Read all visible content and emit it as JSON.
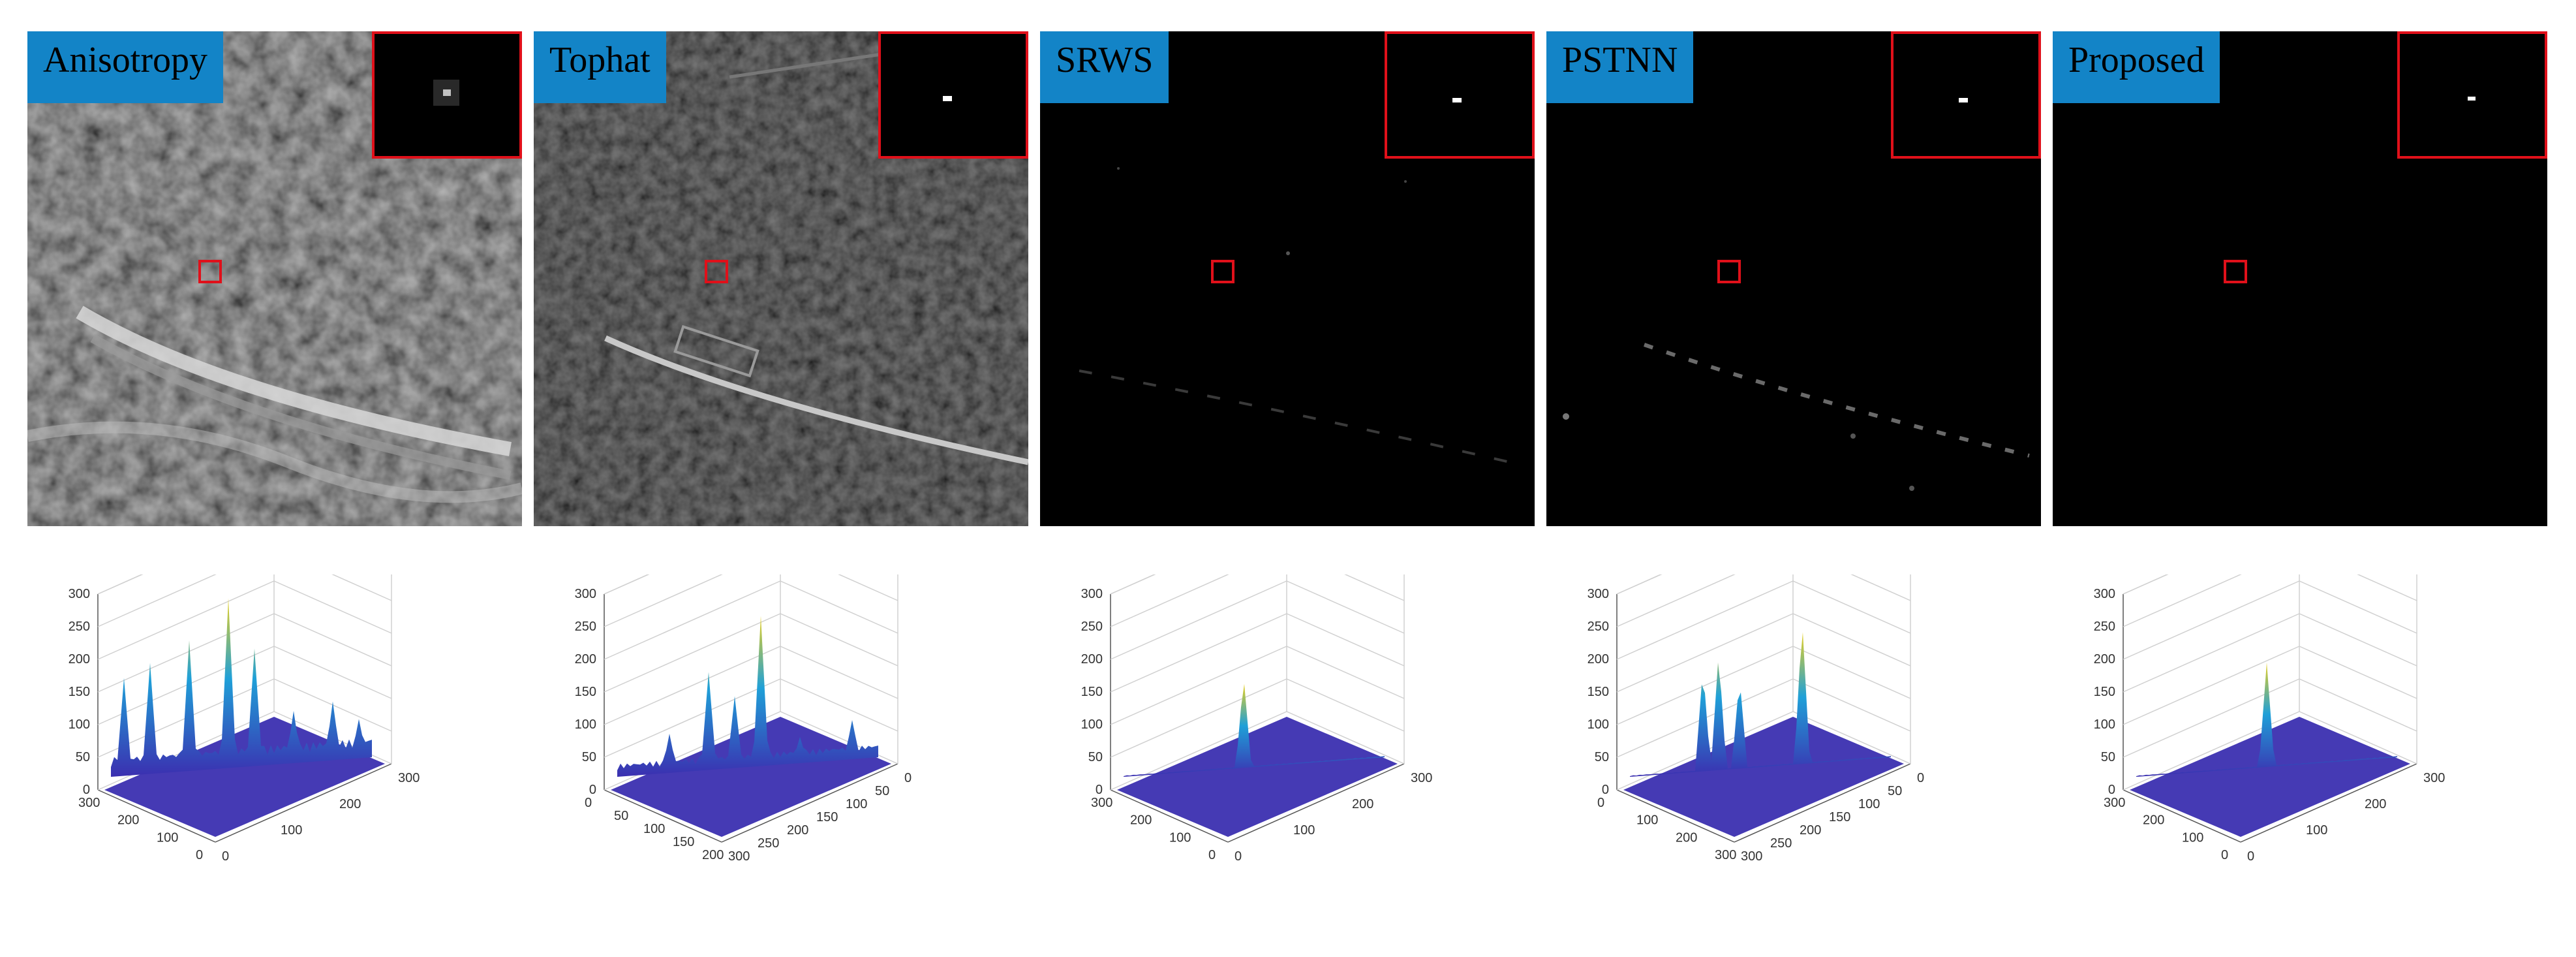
{
  "panels": [
    {
      "label": "Anisotropy"
    },
    {
      "label": "Tophat"
    },
    {
      "label": "SRWS"
    },
    {
      "label": "PSTNN"
    },
    {
      "label": "Proposed"
    }
  ],
  "colors": {
    "label_bg": "#1384c7",
    "box": "#e0101a",
    "surface_low": "#3b2fb0",
    "surface_mid": "#1fa0d8",
    "surface_high": "#e8d020"
  },
  "plots": [
    {
      "z_ticks": [
        "300",
        "250",
        "200",
        "150",
        "100",
        "50",
        "0"
      ],
      "x_ticks": [
        "0",
        "100",
        "200",
        "300"
      ],
      "y_ticks": [
        "300",
        "200",
        "100",
        "0"
      ]
    },
    {
      "z_ticks": [
        "300",
        "250",
        "200",
        "150",
        "100",
        "50",
        "0"
      ],
      "x_ticks": [
        "300",
        "250",
        "200",
        "150",
        "100",
        "50",
        "0"
      ],
      "y_ticks": [
        "0",
        "50",
        "100",
        "150",
        "200"
      ]
    },
    {
      "z_ticks": [
        "300",
        "250",
        "200",
        "150",
        "100",
        "50",
        "0"
      ],
      "x_ticks": [
        "0",
        "100",
        "200",
        "300"
      ],
      "y_ticks": [
        "300",
        "200",
        "100",
        "0"
      ]
    },
    {
      "z_ticks": [
        "300",
        "250",
        "200",
        "150",
        "100",
        "50",
        "0"
      ],
      "x_ticks": [
        "300",
        "250",
        "200",
        "150",
        "100",
        "50",
        "0"
      ],
      "y_ticks": [
        "0",
        "100",
        "200",
        "300"
      ]
    },
    {
      "z_ticks": [
        "300",
        "250",
        "200",
        "150",
        "100",
        "50",
        "0"
      ],
      "x_ticks": [
        "0",
        "100",
        "200",
        "300"
      ],
      "y_ticks": [
        "300",
        "200",
        "100",
        "0"
      ]
    }
  ]
}
